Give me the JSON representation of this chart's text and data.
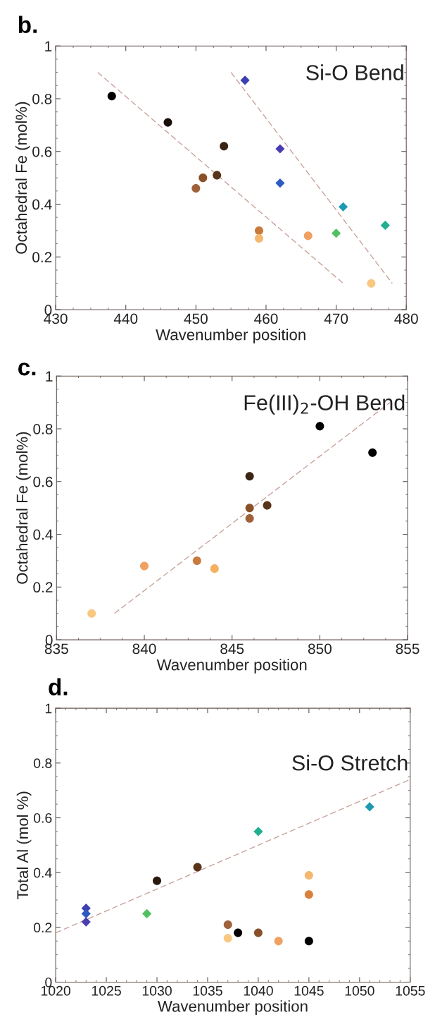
{
  "chart_data": [
    {
      "type": "scatter",
      "title": "b.",
      "xlabel": "Wavenumber position",
      "ylabel": "Octahedral Fe (mol%)",
      "annotations": [
        "Si-O Bend"
      ],
      "xlim": [
        430,
        480
      ],
      "xticks": [
        430,
        440,
        450,
        460,
        470,
        480
      ],
      "ylim": [
        0,
        1
      ],
      "yticks": [
        0,
        0.2,
        0.4,
        0.6,
        0.8,
        1
      ],
      "grid": false,
      "legend": false,
      "series": [
        {
          "type": "line",
          "line_style": "dashed",
          "marker": "none",
          "color": "#c9a39c",
          "x": [
            436,
            471
          ],
          "values": [
            0.9,
            0.1
          ]
        },
        {
          "type": "line",
          "line_style": "dashed",
          "marker": "none",
          "color": "#c9a39c",
          "x": [
            455,
            478
          ],
          "values": [
            0.9,
            0.1
          ]
        },
        {
          "marker": "circle",
          "x": [
            438,
            446,
            454,
            453,
            451,
            450,
            459,
            459,
            466,
            475
          ],
          "values": [
            0.81,
            0.71,
            0.62,
            0.51,
            0.5,
            0.46,
            0.3,
            0.27,
            0.28,
            0.1
          ],
          "colors": [
            "#000000",
            "#1a0f08",
            "#3a2414",
            "#5a3418",
            "#8a5128",
            "#a0603a",
            "#c87a3c",
            "#f5b870",
            "#f0a060",
            "#f8c880"
          ]
        },
        {
          "marker": "diamond",
          "x": [
            457,
            462,
            462,
            471,
            470,
            477
          ],
          "values": [
            0.87,
            0.61,
            0.48,
            0.39,
            0.29,
            0.32
          ],
          "colors": [
            "#3b3fb0",
            "#4a3db0",
            "#2c5cc0",
            "#1e9ab0",
            "#50c060",
            "#20b090"
          ]
        }
      ]
    },
    {
      "type": "scatter",
      "title": "c.",
      "xlabel": "Wavenumber position",
      "ylabel": "Octahedral Fe (mol%)",
      "annotations": [
        "Fe(III)$_{2}$-OH Bend"
      ],
      "xlim": [
        835,
        855
      ],
      "xticks": [
        835,
        840,
        845,
        850,
        855
      ],
      "ylim": [
        0,
        1
      ],
      "yticks": [
        0,
        0.2,
        0.4,
        0.6,
        0.8,
        1
      ],
      "grid": false,
      "legend": false,
      "series": [
        {
          "type": "line",
          "line_style": "dashed",
          "marker": "none",
          "color": "#c9a39c",
          "x": [
            838.3,
            854
          ],
          "values": [
            0.1,
            0.9
          ]
        },
        {
          "marker": "circle",
          "x": [
            850,
            853,
            846,
            847,
            846,
            846,
            843,
            844,
            840,
            837
          ],
          "values": [
            0.81,
            0.71,
            0.62,
            0.51,
            0.5,
            0.46,
            0.3,
            0.27,
            0.28,
            0.1
          ],
          "colors": [
            "#000000",
            "#000000",
            "#3a2414",
            "#5a3418",
            "#8a5128",
            "#a0603a",
            "#c87a3c",
            "#f5b060",
            "#f0a060",
            "#f8c880"
          ]
        }
      ]
    },
    {
      "type": "scatter",
      "title": "d.",
      "xlabel": "Wavenumber position",
      "ylabel": "Total Al (mol %)",
      "annotations": [
        "Si-O Stretch"
      ],
      "xlim": [
        1020,
        1055
      ],
      "xticks": [
        1020,
        1025,
        1030,
        1035,
        1040,
        1045,
        1050,
        1055
      ],
      "ylim": [
        0,
        1
      ],
      "yticks": [
        0,
        0.2,
        0.4,
        0.6,
        0.8,
        1
      ],
      "grid": false,
      "legend": false,
      "series": [
        {
          "type": "line",
          "line_style": "dashed",
          "marker": "none",
          "color": "#c9a39c",
          "x": [
            1020,
            1055
          ],
          "values": [
            0.18,
            0.74
          ]
        },
        {
          "marker": "diamond",
          "x": [
            1023,
            1023,
            1023,
            1029,
            1040,
            1051
          ],
          "values": [
            0.27,
            0.25,
            0.22,
            0.25,
            0.55,
            0.64
          ],
          "colors": [
            "#3b3fb0",
            "#2c5cc0",
            "#4a3db0",
            "#50c060",
            "#20b090",
            "#1e9ab0"
          ]
        },
        {
          "marker": "circle",
          "x": [
            1030,
            1034,
            1037,
            1037,
            1038,
            1040,
            1042,
            1045,
            1045,
            1045
          ],
          "values": [
            0.37,
            0.42,
            0.21,
            0.16,
            0.18,
            0.18,
            0.15,
            0.39,
            0.32,
            0.15
          ],
          "colors": [
            "#2a1a0e",
            "#5a3418",
            "#a0603a",
            "#f8c880",
            "#000000",
            "#8a5128",
            "#f0a060",
            "#f5b870",
            "#d8803c",
            "#000000"
          ]
        }
      ]
    }
  ]
}
